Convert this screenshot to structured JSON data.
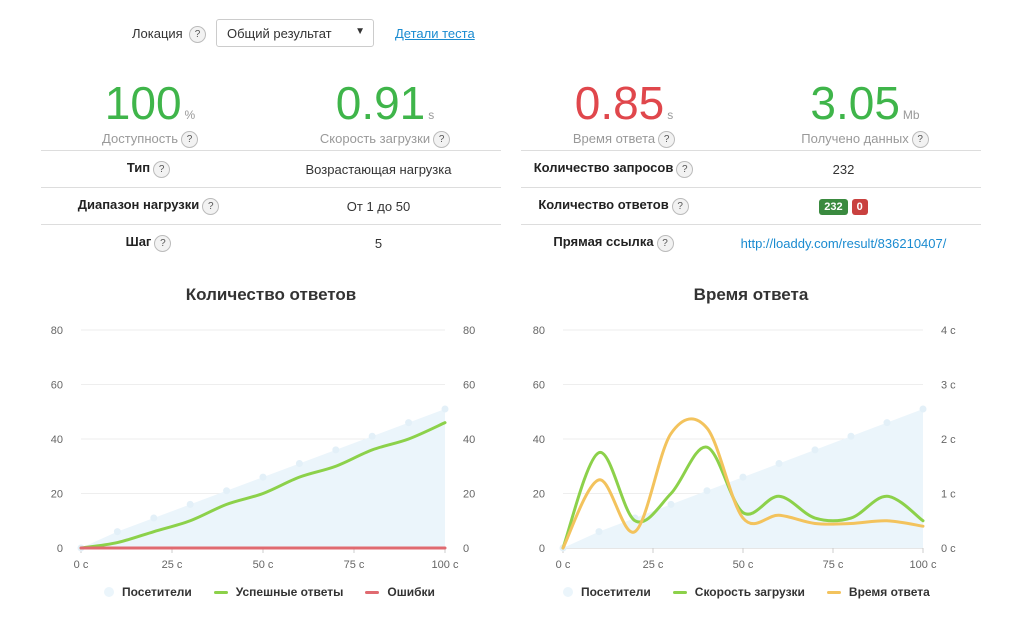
{
  "location": {
    "label": "Локация",
    "selected": "Общий результат",
    "details_link": "Детали теста"
  },
  "metrics": [
    {
      "value": "100",
      "unit": "%",
      "caption": "Доступность",
      "color": "#3fb54a"
    },
    {
      "value": "0.91",
      "unit": "s",
      "caption": "Скорость загрузки",
      "color": "#3fb54a"
    },
    {
      "value": "0.85",
      "unit": "s",
      "caption": "Время ответа",
      "color": "#e0474c"
    },
    {
      "value": "3.05",
      "unit": "Mb",
      "caption": "Получено данных",
      "color": "#3fb54a"
    }
  ],
  "left_table": [
    {
      "key": "Тип",
      "value": "Возрастающая нагрузка"
    },
    {
      "key": "Диапазон нагрузки",
      "value": "От 1 до 50"
    },
    {
      "key": "Шаг",
      "value": "5"
    }
  ],
  "right_table": {
    "requests_label": "Количество запросов",
    "requests_value": "232",
    "responses_label": "Количество ответов",
    "responses_ok": "232",
    "responses_err": "0",
    "link_label": "Прямая ссылка",
    "link_value": "http://loaddy.com/result/836210407/"
  },
  "help_glyph": "?",
  "colors": {
    "visitors": "#ebf5fb",
    "success": "#8cd14a",
    "errors": "#e06a70",
    "load_speed": "#8cd14a",
    "response_time": "#f3c35d",
    "link": "#1a8bd0"
  },
  "chart_data": [
    {
      "type": "line",
      "title": "Количество ответов",
      "x": [
        0,
        10,
        20,
        30,
        40,
        50,
        60,
        70,
        80,
        90,
        100
      ],
      "xticks": [
        "0 с",
        "25 с",
        "50 с",
        "75 с",
        "100 с"
      ],
      "ylim": [
        0,
        80
      ],
      "y2lim": [
        0,
        80
      ],
      "yticks": [
        "0",
        "20",
        "40",
        "60",
        "80"
      ],
      "y2ticks": [
        "0",
        "20",
        "40",
        "60",
        "80"
      ],
      "series": [
        {
          "name": "Посетители",
          "kind": "area",
          "values": [
            0,
            6,
            11,
            16,
            21,
            26,
            31,
            36,
            41,
            46,
            51
          ]
        },
        {
          "name": "Успешные ответы",
          "kind": "line",
          "values": [
            0,
            2,
            6,
            10,
            16,
            20,
            26,
            30,
            36,
            40,
            46
          ]
        },
        {
          "name": "Ошибки",
          "kind": "line",
          "values": [
            0,
            0,
            0,
            0,
            0,
            0,
            0,
            0,
            0,
            0,
            0
          ]
        }
      ]
    },
    {
      "type": "line",
      "title": "Время ответа",
      "x": [
        0,
        10,
        20,
        30,
        40,
        50,
        60,
        70,
        80,
        90,
        100
      ],
      "xticks": [
        "0 с",
        "25 с",
        "50 с",
        "75 с",
        "100 с"
      ],
      "ylim": [
        0,
        80
      ],
      "y2lim": [
        0,
        4
      ],
      "yticks": [
        "0",
        "20",
        "40",
        "60",
        "80"
      ],
      "y2ticks": [
        "0 с",
        "1 с",
        "2 с",
        "3 с",
        "4 с"
      ],
      "series": [
        {
          "name": "Посетители",
          "kind": "area",
          "axis": "left",
          "values": [
            0,
            6,
            11,
            16,
            21,
            26,
            31,
            36,
            41,
            46,
            51
          ]
        },
        {
          "name": "Скорость загрузки",
          "kind": "line",
          "axis": "right",
          "values": [
            0,
            1.75,
            0.5,
            1.0,
            1.85,
            0.65,
            0.95,
            0.55,
            0.55,
            0.95,
            0.5
          ]
        },
        {
          "name": "Время ответа",
          "kind": "line",
          "axis": "right",
          "values": [
            0,
            1.25,
            0.3,
            2.1,
            2.2,
            0.55,
            0.6,
            0.45,
            0.45,
            0.5,
            0.4
          ]
        }
      ]
    }
  ]
}
